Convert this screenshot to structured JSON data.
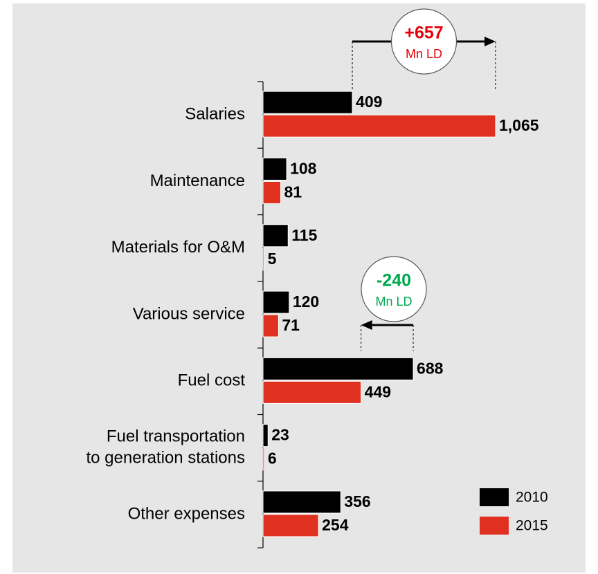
{
  "chart_data": {
    "type": "bar",
    "orientation": "horizontal",
    "categories": [
      "Salaries",
      "Maintenance",
      "Materials for O&M",
      "Various service",
      "Fuel cost",
      [
        "Fuel transportation",
        "to generation stations"
      ],
      "Other expenses"
    ],
    "series": [
      {
        "name": "2010",
        "color": "#000000",
        "values": [
          409,
          108,
          115,
          120,
          688,
          23,
          356
        ]
      },
      {
        "name": "2015",
        "color": "#e03020",
        "values": [
          1065,
          81,
          5,
          71,
          449,
          6,
          254
        ],
        "value_labels": [
          "1,065",
          "81",
          "5",
          "71",
          "449",
          "6",
          "254"
        ]
      }
    ],
    "annotations": [
      {
        "text": "+657",
        "unit": "Mn LD",
        "color": "#e8000b"
      },
      {
        "text": "-240",
        "unit": "Mn LD",
        "color": "#00a84f"
      }
    ],
    "legend": "lower right"
  }
}
